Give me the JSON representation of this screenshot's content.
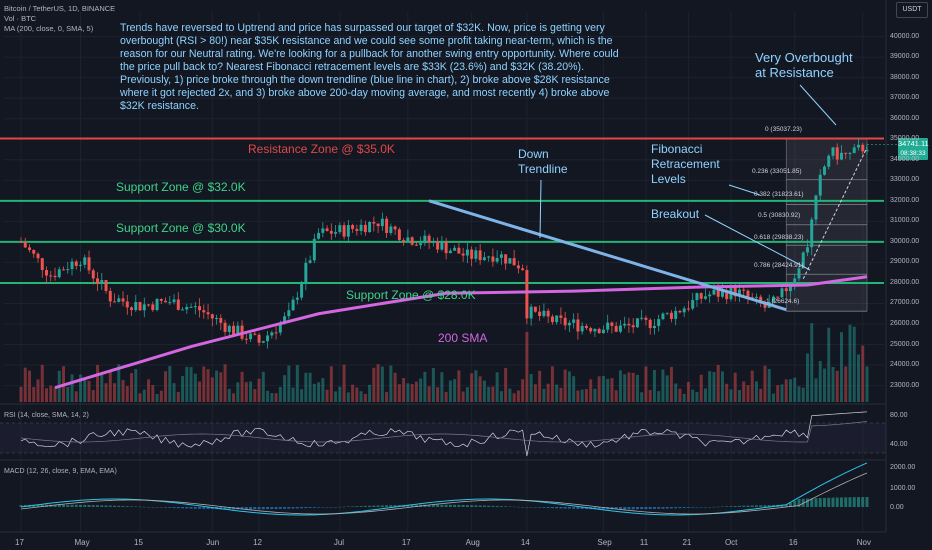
{
  "header": {
    "symbol_line": "Bitcoin / TetherUS, 1D, BINANCE",
    "vol_line": "Vol · BTC",
    "ma_line": "MA (200, close, 0, SMA, 5)",
    "currency": "USDT"
  },
  "commentary": "Trends have reversed to Uptrend and price has surpassed our target of $32K. Now, price is getting very overbought (RSI > 80!) near $35K resistance and we could see some profit taking near-term, which is the reason for our Neutral rating. We're looking for a pullback for another swing entry opportunity. Where could the price pull back to? Nearest Fibonacci retracement levels are $33K (23.6%) and $32K (38.20%). Previously, 1) price broke through the down trendline (blue line in chart), 2) broke above $28K resistance where it got rejected 2x, and 3) broke above 200-day moving average, and most recently 4) broke above $32K resistance.",
  "annotations": {
    "overbought": "Very Overbought\nat Resistance",
    "down_trendline": "Down\nTrendline",
    "fibonacci": "Fibonacci\nRetracement\nLevels",
    "breakout": "Breakout",
    "sma": "200 SMA"
  },
  "zones": [
    {
      "label": "Resistance Zone @ $35.0K",
      "price": 35037,
      "color": "#e04848"
    },
    {
      "label": "Support Zone @ $32.0K",
      "price": 32000,
      "color": "#22b573"
    },
    {
      "label": "Support Zone @ $30.0K",
      "price": 30000,
      "color": "#22b573"
    },
    {
      "label": "Support Zone @ $28.0K",
      "price": 28000,
      "color": "#22b573"
    }
  ],
  "fib_levels": [
    {
      "label": "0 (35037.23)",
      "price": 35037.23
    },
    {
      "label": "0.236 (33051.85)",
      "price": 33051.85
    },
    {
      "label": "0.382 (31823.61)",
      "price": 31823.61
    },
    {
      "label": "0.5 (30830.92)",
      "price": 30830.92
    },
    {
      "label": "0.618 (29838.23)",
      "price": 29838.23
    },
    {
      "label": "0.786 (28424.91)",
      "price": 28424.91
    },
    {
      "label": "1 (26624.6)",
      "price": 26624.6
    }
  ],
  "current": {
    "price": "34741.11",
    "countdown": "08:38:33",
    "value": 34741.11
  },
  "chart_data": {
    "type": "candlestick",
    "y_axis_ticks": [
      23000,
      24000,
      25000,
      26000,
      27000,
      28000,
      29000,
      30000,
      31000,
      32000,
      33000,
      34000,
      35000,
      36000,
      37000,
      38000,
      39000,
      40000
    ],
    "y_tick_labels": [
      "23000.00",
      "24000.00",
      "25000.00",
      "26000.00",
      "27000.00",
      "28000.00",
      "29000.00",
      "30000.00",
      "31000.00",
      "32000.00",
      "33000.00",
      "34000.00",
      "35000.00",
      "36000.00",
      "37000.00",
      "38000.00",
      "39000.00",
      "40000.00"
    ],
    "ylim": [
      22200,
      41200
    ],
    "x_ticks": [
      {
        "label": "17",
        "day": 0
      },
      {
        "label": "May",
        "day": 14
      },
      {
        "label": "15",
        "day": 28
      },
      {
        "label": "Jun",
        "day": 45
      },
      {
        "label": "12",
        "day": 56
      },
      {
        "label": "Jul",
        "day": 75
      },
      {
        "label": "17",
        "day": 91
      },
      {
        "label": "Aug",
        "day": 106
      },
      {
        "label": "14",
        "day": 119
      },
      {
        "label": "Sep",
        "day": 137
      },
      {
        "label": "11",
        "day": 147
      },
      {
        "label": "21",
        "day": 157
      },
      {
        "label": "Oct",
        "day": 167
      },
      {
        "label": "16",
        "day": 182
      },
      {
        "label": "Nov",
        "day": 198
      }
    ],
    "price_keypoints": [
      [
        0,
        30000
      ],
      [
        7,
        28400
      ],
      [
        14,
        29200
      ],
      [
        21,
        27300
      ],
      [
        28,
        26900
      ],
      [
        35,
        27100
      ],
      [
        42,
        26700
      ],
      [
        49,
        25800
      ],
      [
        56,
        25100
      ],
      [
        63,
        26400
      ],
      [
        70,
        30400
      ],
      [
        77,
        30600
      ],
      [
        84,
        31000
      ],
      [
        91,
        30200
      ],
      [
        98,
        29900
      ],
      [
        105,
        29300
      ],
      [
        112,
        29400
      ],
      [
        118,
        28800
      ],
      [
        119,
        26600
      ],
      [
        126,
        26100
      ],
      [
        133,
        25900
      ],
      [
        140,
        25800
      ],
      [
        147,
        26000
      ],
      [
        154,
        26600
      ],
      [
        161,
        27400
      ],
      [
        168,
        27600
      ],
      [
        175,
        26800
      ],
      [
        178,
        27100
      ],
      [
        182,
        28400
      ],
      [
        185,
        29900
      ],
      [
        188,
        33000
      ],
      [
        190,
        34300
      ],
      [
        195,
        34200
      ],
      [
        199,
        34741
      ]
    ],
    "sma_200": [
      [
        8,
        22900
      ],
      [
        40,
        24900
      ],
      [
        70,
        26500
      ],
      [
        100,
        27500
      ],
      [
        130,
        27600
      ],
      [
        160,
        27800
      ],
      [
        185,
        27900
      ],
      [
        199,
        28300
      ]
    ],
    "volume_scale_note": "relative",
    "rsi": {
      "label": "RSI (14, close, SMA, 14, 2)",
      "ticks": [
        "80.00",
        "40.00"
      ],
      "last": 80
    },
    "macd": {
      "label": "MACD (12, 26, close, 9, EMA, EMA)",
      "ticks": [
        "2000.00",
        "1000.00",
        "0.00"
      ]
    }
  }
}
